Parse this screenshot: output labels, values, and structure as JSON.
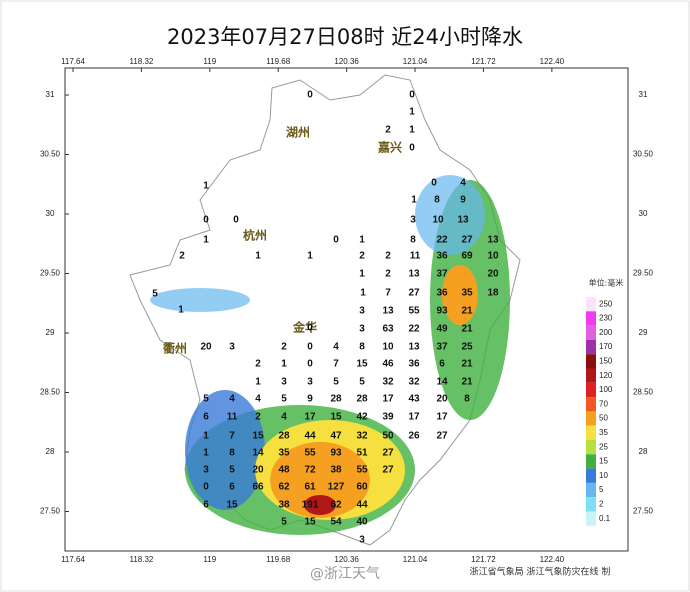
{
  "title": "2023年07月27日08时  近24小时降水",
  "lon_ticks": [
    117.64,
    118.32,
    119,
    119.68,
    120.36,
    121.04,
    121.72,
    {
      "value": 122.4,
      "label": "122.40"
    }
  ],
  "lat_ticks": [
    31,
    {
      "value": 30.5,
      "label": "30.50"
    },
    30,
    {
      "value": 29.5,
      "label": "29.50"
    },
    29,
    {
      "value": 28.5,
      "label": "28.50"
    },
    28,
    {
      "value": 27.5,
      "label": "27.50"
    }
  ],
  "cities": [
    "湖州",
    "嘉兴",
    "杭州",
    "金华",
    "衢州"
  ],
  "legend": {
    "unit": "单位:毫米",
    "levels": [
      250,
      230,
      200,
      170,
      150,
      120,
      100,
      70,
      50,
      35,
      25,
      15,
      10,
      5,
      2,
      0.1
    ],
    "colors": [
      "#fbe3fb",
      "#f03cf0",
      "#e060e0",
      "#9c30a8",
      "#8a1010",
      "#b01818",
      "#e02020",
      "#f05a20",
      "#f5a020",
      "#f5e040",
      "#b8e040",
      "#40b040",
      "#3a7ad8",
      "#66b8f0",
      "#7ee0f0",
      "#c8f4f8"
    ]
  },
  "stations": [
    0,
    2,
    1,
    1,
    0,
    0,
    1,
    0,
    4,
    1,
    8,
    9,
    0,
    0,
    3,
    10,
    13,
    1,
    0,
    1,
    8,
    22,
    27,
    13,
    2,
    1,
    1,
    2,
    2,
    11,
    36,
    69,
    10,
    1,
    2,
    13,
    37,
    20,
    5,
    1,
    7,
    27,
    36,
    35,
    18,
    1,
    3,
    13,
    55,
    93,
    21,
    0,
    3,
    63,
    22,
    49,
    21,
    20,
    3,
    2,
    0,
    4,
    8,
    10,
    13,
    37,
    25,
    2,
    1,
    0,
    7,
    15,
    46,
    36,
    6,
    21,
    1,
    3,
    3,
    5,
    5,
    32,
    32,
    14,
    21,
    5,
    4,
    4,
    5,
    9,
    28,
    28,
    17,
    43,
    20,
    8,
    6,
    11,
    2,
    4,
    17,
    15,
    42,
    39,
    17,
    17,
    1,
    7,
    15,
    28,
    44,
    47,
    32,
    50,
    26,
    27,
    1,
    8,
    14,
    35,
    55,
    93,
    51,
    27,
    3,
    5,
    20,
    48,
    72,
    38,
    55,
    27,
    0,
    6,
    66,
    62,
    61,
    127,
    60,
    6,
    15,
    38,
    191,
    62,
    44,
    5,
    15,
    54,
    40,
    3
  ],
  "footer": "浙江省气象局  浙江气象防灾在线 制",
  "watermark": "@浙江天气"
}
